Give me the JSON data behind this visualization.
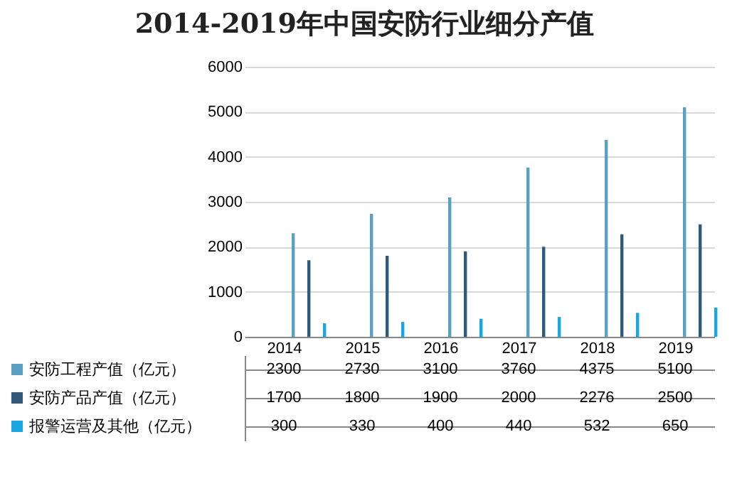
{
  "chart_data": {
    "type": "bar",
    "title": "2014-2019年中国安防行业细分产值",
    "categories": [
      "2014",
      "2015",
      "2016",
      "2017",
      "2018",
      "2019"
    ],
    "series": [
      {
        "name": "安防工程产值（亿元）",
        "color": "#5b9fc2",
        "values": [
          2300,
          2730,
          3100,
          3760,
          4375,
          5100
        ]
      },
      {
        "name": "安防产品产值（亿元）",
        "color": "#2f5b7a",
        "values": [
          1700,
          1800,
          1900,
          2000,
          2276,
          2500
        ]
      },
      {
        "name": "报警运营及其他（亿元）",
        "color": "#1aa7e0",
        "values": [
          300,
          330,
          400,
          440,
          532,
          650
        ]
      }
    ],
    "ylim": [
      0,
      6000
    ],
    "yticks": [
      0,
      1000,
      2000,
      3000,
      4000,
      5000,
      6000
    ],
    "grid": "y",
    "legend": "bottom",
    "data_labels": true
  }
}
